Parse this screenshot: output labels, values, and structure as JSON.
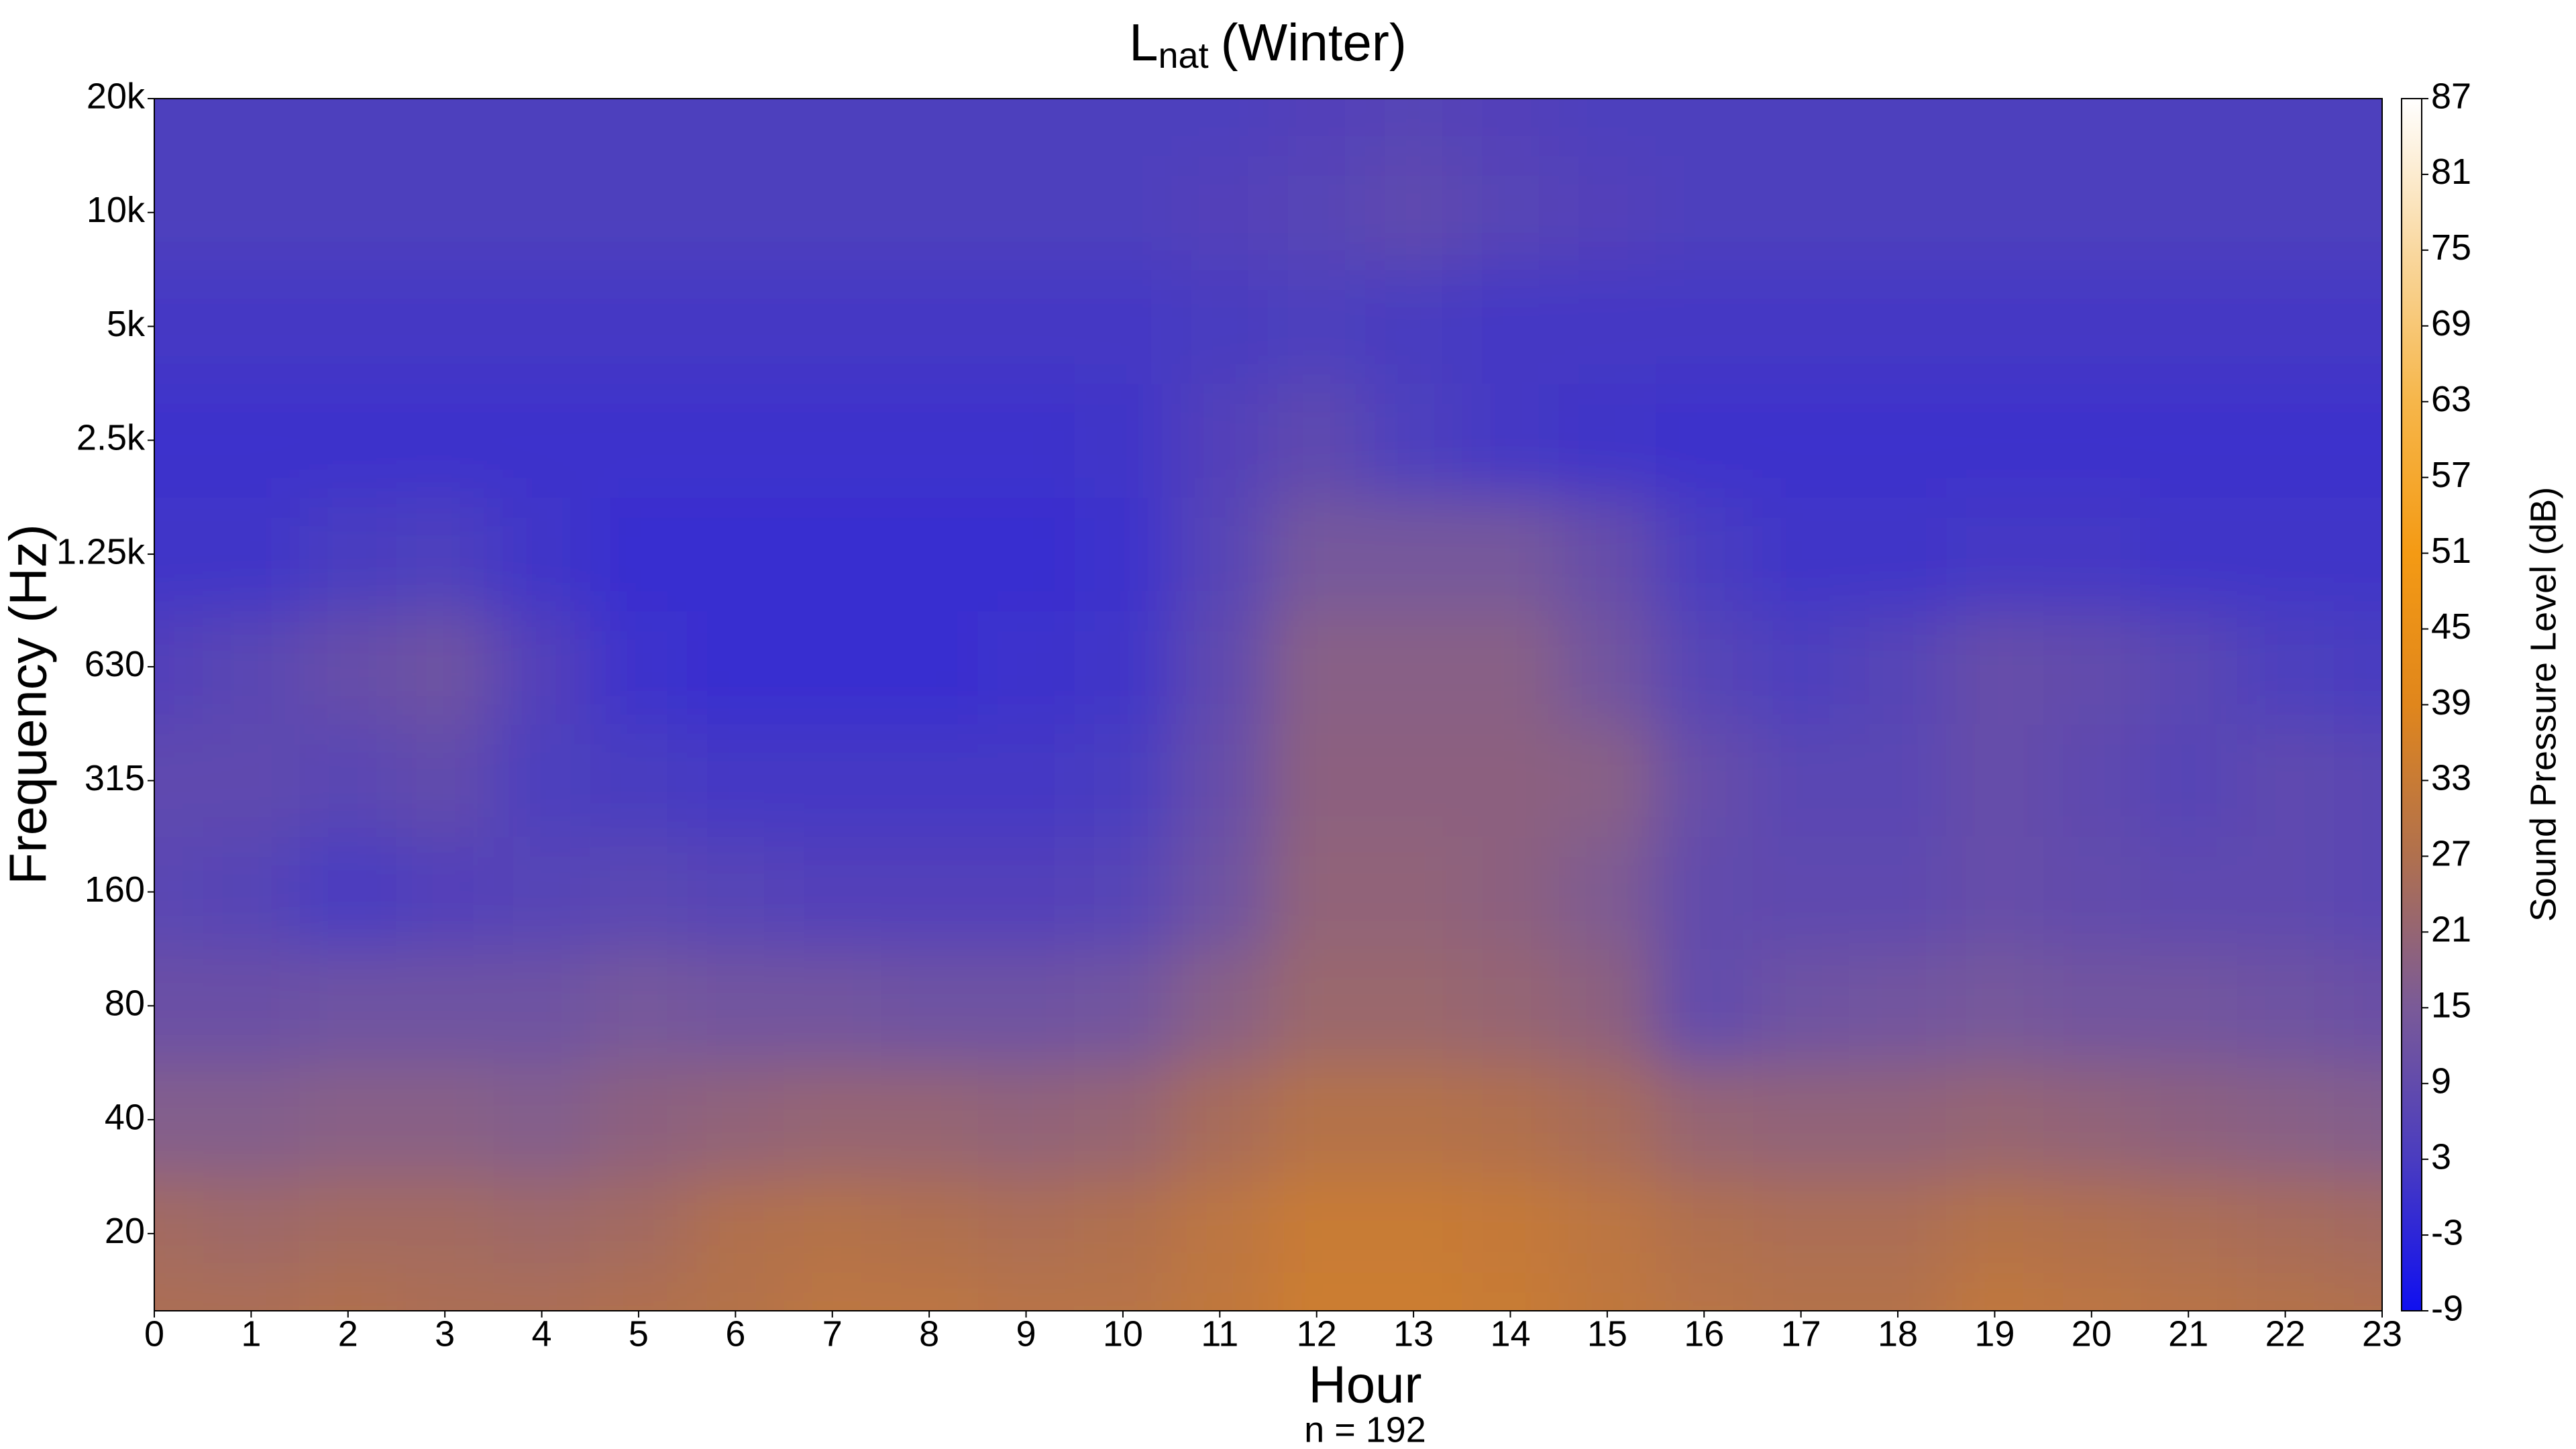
{
  "chart_data": {
    "type": "heatmap",
    "title": {
      "main": "L",
      "subscript": "nat",
      "rest": "(Winter)"
    },
    "xlabel": "Hour",
    "note": "n = 192",
    "ylabel": "Frequency (Hz)",
    "colorbar_label": "Sound Pressure Level (dB)",
    "x": [
      0,
      1,
      2,
      3,
      4,
      5,
      6,
      7,
      8,
      9,
      10,
      11,
      12,
      13,
      14,
      15,
      16,
      17,
      18,
      19,
      20,
      21,
      22,
      23
    ],
    "y": [
      12.5,
      20,
      40,
      80,
      160,
      315,
      630,
      1250,
      2500,
      5000,
      10000,
      20000
    ],
    "z": [
      [
        26,
        26,
        27,
        26,
        26,
        27,
        28,
        30,
        30,
        29,
        29,
        31,
        34,
        34,
        33,
        31,
        29,
        28,
        28,
        31,
        30,
        29,
        28,
        27
      ],
      [
        24,
        23,
        24,
        24,
        23,
        24,
        27,
        28,
        27,
        26,
        27,
        30,
        33,
        33,
        32,
        30,
        27,
        26,
        26,
        28,
        27,
        26,
        25,
        24
      ],
      [
        17,
        17,
        18,
        18,
        17,
        19,
        20,
        21,
        21,
        20,
        21,
        25,
        28,
        28,
        27,
        25,
        21,
        20,
        20,
        21,
        20,
        19,
        18,
        17
      ],
      [
        11,
        11,
        12,
        12,
        12,
        14,
        13,
        13,
        12,
        12,
        13,
        18,
        22,
        22,
        21,
        19,
        9,
        12,
        13,
        14,
        13,
        13,
        12,
        11
      ],
      [
        7,
        6,
        3,
        5,
        6,
        7,
        6,
        5,
        5,
        5,
        6,
        12,
        20,
        20,
        19,
        16,
        9,
        8,
        8,
        10,
        9,
        8,
        8,
        7
      ],
      [
        8,
        8,
        7,
        9,
        4,
        3,
        2,
        2,
        2,
        2,
        3,
        10,
        19,
        19,
        19,
        18,
        10,
        7,
        7,
        10,
        8,
        6,
        8,
        7
      ],
      [
        5,
        7,
        10,
        12,
        5,
        0,
        -1,
        -1,
        -1,
        0,
        1,
        8,
        18,
        18,
        18,
        13,
        6,
        4,
        6,
        10,
        9,
        7,
        4,
        3
      ],
      [
        1,
        1,
        3,
        4,
        1,
        -1,
        -1,
        -1,
        -1,
        -1,
        0,
        6,
        14,
        14,
        14,
        10,
        3,
        1,
        1,
        2,
        2,
        1,
        1,
        1
      ],
      [
        0,
        0,
        0,
        0,
        0,
        0,
        0,
        0,
        0,
        0,
        1,
        5,
        8,
        4,
        2,
        1,
        0,
        0,
        0,
        0,
        0,
        0,
        0,
        0
      ],
      [
        2,
        2,
        2,
        2,
        2,
        2,
        2,
        2,
        2,
        2,
        2,
        3,
        4,
        3,
        2,
        2,
        2,
        2,
        2,
        2,
        2,
        2,
        2,
        2
      ],
      [
        4,
        4,
        4,
        4,
        4,
        4,
        4,
        4,
        4,
        4,
        4,
        5,
        6,
        8,
        6,
        5,
        4,
        4,
        4,
        4,
        4,
        4,
        4,
        4
      ],
      [
        4,
        4,
        4,
        4,
        4,
        4,
        4,
        4,
        4,
        4,
        4,
        4,
        5,
        6,
        5,
        4,
        4,
        4,
        4,
        4,
        4,
        4,
        4,
        4
      ]
    ],
    "xlim": [
      0,
      23
    ],
    "xticks": [
      0,
      1,
      2,
      3,
      4,
      5,
      6,
      7,
      8,
      9,
      10,
      11,
      12,
      13,
      14,
      15,
      16,
      17,
      18,
      19,
      20,
      21,
      22,
      23
    ],
    "ylim": [
      12.5,
      20000
    ],
    "ylog": true,
    "yticks": [
      20,
      40,
      80,
      160,
      315,
      630,
      {
        "value": 1250,
        "label": "1.25k"
      },
      {
        "value": 2500,
        "label": "2.5k"
      },
      {
        "value": 5000,
        "label": "5k"
      },
      {
        "value": 10000,
        "label": "10k"
      },
      {
        "value": 20000,
        "label": "20k"
      }
    ],
    "zlim": [
      -9,
      87
    ],
    "zticks": [
      -9,
      -3,
      3,
      9,
      15,
      21,
      27,
      33,
      39,
      45,
      51,
      57,
      63,
      69,
      75,
      81,
      87
    ],
    "colorscale": [
      "#1010f0",
      "#4a3cc0",
      "#7a5a98",
      "#b0704e",
      "#e0861c",
      "#f49a14",
      "#f6b64a",
      "#f9d8a0",
      "#ffffff"
    ]
  }
}
